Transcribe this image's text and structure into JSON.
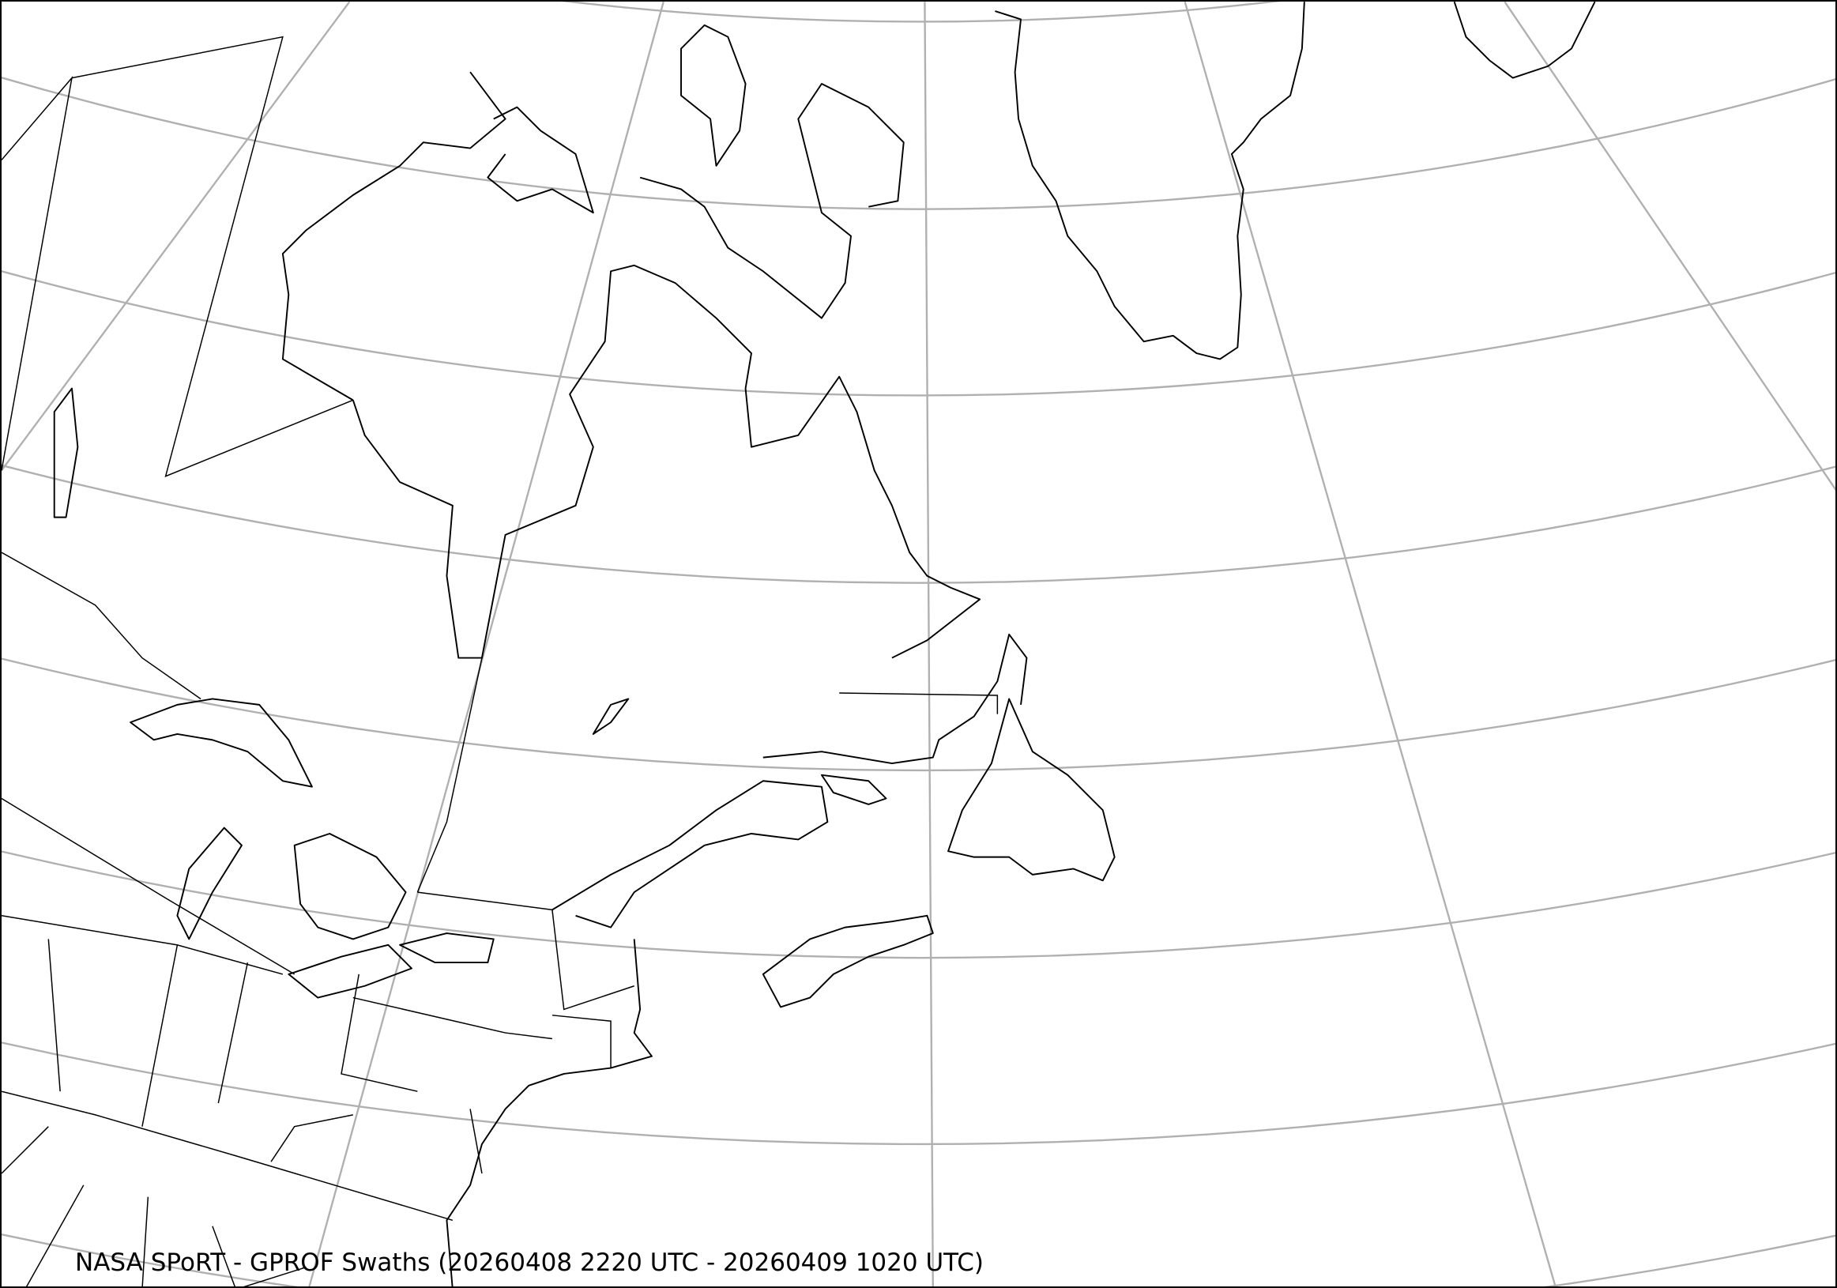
{
  "map": {
    "caption": "NASA SPoRT - GPROF Swaths (20260408 2220 UTC - 20260409 1020 UTC)",
    "region": "Eastern Canada, Northeastern United States, Greenland, North Atlantic",
    "projection_style": "conic with latitude/longitude graticule",
    "colors": {
      "graticule": "#b0b0b0",
      "coastline": "#000000",
      "background": "#ffffff"
    }
  }
}
